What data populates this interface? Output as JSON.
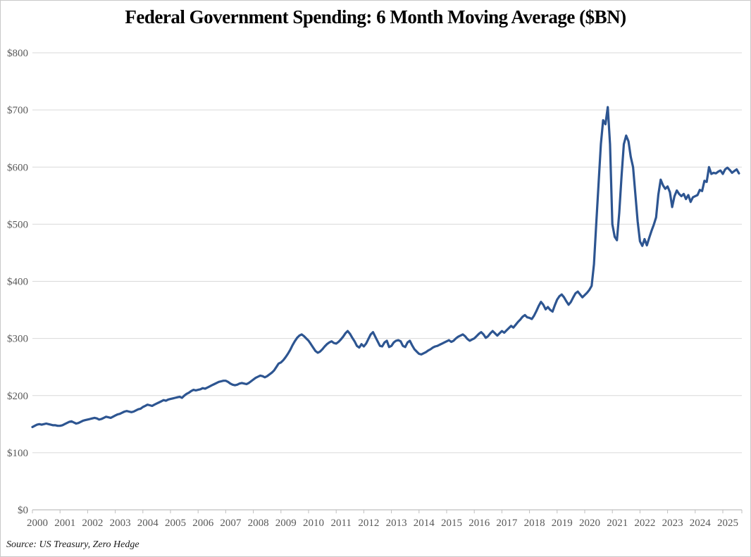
{
  "title": "Federal Government Spending: 6 Month Moving Average ($BN)",
  "source": "Source: US Treasury, Zero Hedge",
  "colors": {
    "line": "#2D5591",
    "grid": "#D9D9D9",
    "axis": "#BFBFBF",
    "tick_label": "#595959",
    "title": "#000000",
    "source_text": "#1A1A1A",
    "border": "#C9C9C9",
    "background": "#FFFFFF"
  },
  "chart_data": {
    "type": "line",
    "title": "Federal Government Spending: 6 Month Moving Average ($BN)",
    "series_name": "Federal government spending, 6-month moving average",
    "units": "$BN",
    "x_start": "2000-01",
    "x_step": "1 month",
    "x_end": "2025-08",
    "x_tick_labels": [
      "2000",
      "2001",
      "2002",
      "2003",
      "2004",
      "2005",
      "2006",
      "2007",
      "2008",
      "2009",
      "2010",
      "2011",
      "2012",
      "2013",
      "2014",
      "2015",
      "2016",
      "2017",
      "2018",
      "2019",
      "2020",
      "2021",
      "2022",
      "2023",
      "2024",
      "2025"
    ],
    "y_tick_labels": [
      "$0",
      "$100",
      "$200",
      "$300",
      "$400",
      "$500",
      "$600",
      "$700",
      "$800"
    ],
    "ylim": [
      0,
      800
    ],
    "y_tick_interval": 100,
    "grid": "horizontal",
    "legend": "none",
    "values": [
      145,
      147,
      149,
      150,
      149,
      150,
      151,
      150,
      149,
      148,
      148,
      147,
      147,
      148,
      150,
      152,
      154,
      155,
      153,
      151,
      152,
      154,
      156,
      157,
      158,
      159,
      160,
      161,
      160,
      158,
      159,
      161,
      163,
      162,
      161,
      163,
      165,
      167,
      168,
      170,
      172,
      173,
      172,
      171,
      172,
      174,
      176,
      177,
      180,
      182,
      184,
      183,
      182,
      184,
      186,
      188,
      190,
      192,
      191,
      193,
      194,
      195,
      196,
      197,
      198,
      196,
      200,
      203,
      205,
      208,
      210,
      209,
      210,
      211,
      213,
      212,
      214,
      216,
      218,
      220,
      222,
      224,
      225,
      226,
      226,
      224,
      221,
      219,
      218,
      219,
      221,
      222,
      221,
      220,
      222,
      225,
      228,
      231,
      233,
      235,
      234,
      232,
      234,
      237,
      240,
      244,
      250,
      256,
      258,
      262,
      267,
      273,
      280,
      288,
      295,
      301,
      305,
      307,
      304,
      300,
      296,
      290,
      284,
      278,
      275,
      277,
      281,
      286,
      290,
      293,
      295,
      292,
      291,
      294,
      298,
      303,
      309,
      313,
      308,
      301,
      295,
      287,
      284,
      290,
      286,
      291,
      299,
      307,
      311,
      303,
      295,
      287,
      286,
      293,
      296,
      285,
      287,
      293,
      296,
      297,
      295,
      287,
      285,
      293,
      296,
      288,
      281,
      277,
      273,
      272,
      274,
      276,
      279,
      281,
      284,
      286,
      287,
      289,
      291,
      293,
      295,
      297,
      294,
      296,
      300,
      303,
      305,
      307,
      304,
      299,
      296,
      298,
      300,
      304,
      308,
      311,
      307,
      301,
      304,
      309,
      313,
      309,
      305,
      309,
      313,
      310,
      314,
      318,
      322,
      319,
      324,
      329,
      333,
      338,
      341,
      337,
      336,
      334,
      340,
      348,
      357,
      364,
      359,
      351,
      355,
      350,
      347,
      358,
      368,
      374,
      377,
      372,
      365,
      359,
      364,
      372,
      379,
      382,
      377,
      372,
      376,
      380,
      385,
      392,
      430,
      500,
      570,
      640,
      682,
      675,
      705,
      640,
      500,
      478,
      472,
      520,
      585,
      640,
      655,
      645,
      618,
      600,
      552,
      505,
      470,
      462,
      474,
      463,
      476,
      488,
      499,
      512,
      552,
      578,
      568,
      562,
      566,
      556,
      530,
      549,
      559,
      553,
      549,
      553,
      544,
      551,
      539,
      547,
      549,
      551,
      560,
      558,
      576,
      574,
      600,
      588,
      590,
      589,
      592,
      594,
      588,
      596,
      599,
      595,
      590,
      593,
      596,
      589
    ]
  }
}
